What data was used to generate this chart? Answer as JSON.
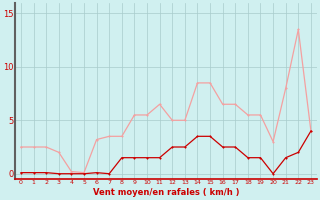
{
  "x": [
    0,
    1,
    2,
    3,
    4,
    5,
    6,
    7,
    8,
    9,
    10,
    11,
    12,
    13,
    14,
    15,
    16,
    17,
    18,
    19,
    20,
    21,
    22,
    23
  ],
  "rafales": [
    2.5,
    2.5,
    2.5,
    2.0,
    0.2,
    0.1,
    3.2,
    3.5,
    3.5,
    5.5,
    5.5,
    6.5,
    5.0,
    5.0,
    8.5,
    8.5,
    6.5,
    6.5,
    5.5,
    5.5,
    3.0,
    8.0,
    13.5,
    4.0
  ],
  "moyen": [
    0.1,
    0.1,
    0.1,
    0.0,
    0.0,
    0.0,
    0.1,
    0.0,
    1.5,
    1.5,
    1.5,
    1.5,
    2.5,
    2.5,
    3.5,
    3.5,
    2.5,
    2.5,
    1.5,
    1.5,
    0.0,
    1.5,
    2.0,
    4.0
  ],
  "rafales_color": "#f4a0a0",
  "moyen_color": "#cc0000",
  "bg_color": "#d0f0f0",
  "grid_color": "#a8cccc",
  "xlabel": "Vent moyen/en rafales ( km/h )",
  "xlabel_color": "#cc0000",
  "tick_color": "#cc0000",
  "yticks": [
    0,
    5,
    10,
    15
  ],
  "ylim": [
    -0.5,
    16
  ],
  "xlim": [
    -0.5,
    23.5
  ],
  "marker_size": 2.0,
  "line_width": 0.9
}
